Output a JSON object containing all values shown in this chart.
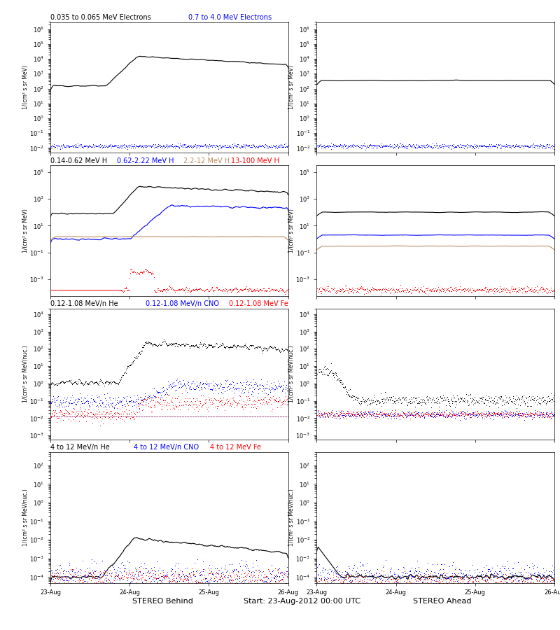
{
  "fig_bg": "#ffffff",
  "panel_bg": "#ffffff",
  "title_center": "Start: 23-Aug-2012 00:00 UTC",
  "xlabel_left": "STEREO Behind",
  "xlabel_right": "STEREO Ahead",
  "xtick_labels": [
    "23-Aug",
    "24-Aug",
    "25-Aug",
    "26-Aug"
  ],
  "rows": [
    {
      "titles_left": [
        "0.035 to 0.065 MeV Electrons",
        "0.7 to 4.0 MeV Electrons"
      ],
      "title_colors_left": [
        "black",
        "#0000ff"
      ],
      "ylim": [
        0.005,
        3000000
      ],
      "ylabel": "1/(cm² s sr MeV)"
    },
    {
      "titles_left": [
        "0.14-0.62 MeV H",
        "0.62-2.22 MeV H",
        "2.2-12 MeV H",
        "13-100 MeV H"
      ],
      "title_colors_left": [
        "black",
        "#0000ff",
        "#bc8a60",
        "#ff0000"
      ],
      "ylim": [
        6e-05,
        300000
      ],
      "ylabel": "1/(cm² s sr MeV)"
    },
    {
      "titles_left": [
        "0.12-1.08 MeV/n He",
        "0.12-1.08 MeV/n CNO",
        "0.12-1.08 MeV Fe"
      ],
      "title_colors_left": [
        "black",
        "#0000ff",
        "#ff0000"
      ],
      "ylim": [
        0.0006,
        20000
      ],
      "ylabel": "1/(cm² s sr MeV/nuc.)"
    },
    {
      "titles_left": [
        "4 to 12 MeV/n He",
        "4 to 12 MeV/n CNO",
        "4 to 12 MeV Fe"
      ],
      "title_colors_left": [
        "black",
        "#0000ff",
        "#ff0000"
      ],
      "ylim": [
        5e-05,
        500
      ],
      "ylabel": "1/(cm² s sr MeV/nuc.)"
    }
  ]
}
